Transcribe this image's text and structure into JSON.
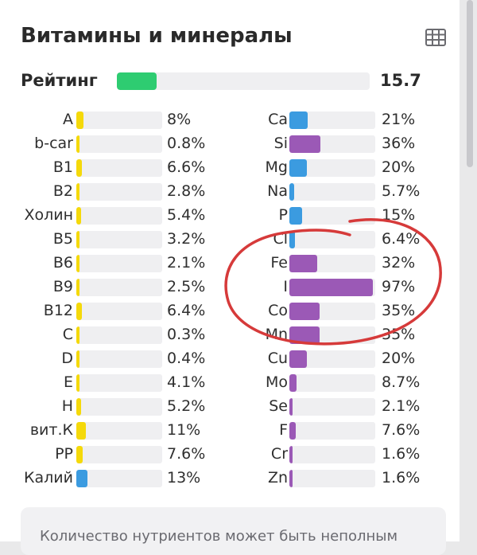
{
  "header": {
    "title": "Витамины и минералы",
    "table_icon": "table-grid-icon"
  },
  "rating": {
    "label": "Рейтинг",
    "value": "15.7",
    "fill_fraction": 0.157,
    "color": "#2ecc71"
  },
  "colors": {
    "vitamin": "#f5d90a",
    "mineral_blue": "#3b9be0",
    "mineral_purple": "#9b59b6",
    "annotation": "#d63a3a"
  },
  "vitamins": [
    {
      "name": "A",
      "value": "8%",
      "fraction": 0.08,
      "color": "#f5d90a"
    },
    {
      "name": "b-car",
      "value": "0.8%",
      "fraction": 0.008,
      "color": "#f5d90a"
    },
    {
      "name": "B1",
      "value": "6.6%",
      "fraction": 0.066,
      "color": "#f5d90a"
    },
    {
      "name": "B2",
      "value": "2.8%",
      "fraction": 0.028,
      "color": "#f5d90a"
    },
    {
      "name": "Холин",
      "value": "5.4%",
      "fraction": 0.054,
      "color": "#f5d90a"
    },
    {
      "name": "B5",
      "value": "3.2%",
      "fraction": 0.032,
      "color": "#f5d90a"
    },
    {
      "name": "B6",
      "value": "2.1%",
      "fraction": 0.021,
      "color": "#f5d90a"
    },
    {
      "name": "B9",
      "value": "2.5%",
      "fraction": 0.025,
      "color": "#f5d90a"
    },
    {
      "name": "B12",
      "value": "6.4%",
      "fraction": 0.064,
      "color": "#f5d90a"
    },
    {
      "name": "C",
      "value": "0.3%",
      "fraction": 0.003,
      "color": "#f5d90a"
    },
    {
      "name": "D",
      "value": "0.4%",
      "fraction": 0.004,
      "color": "#f5d90a"
    },
    {
      "name": "E",
      "value": "4.1%",
      "fraction": 0.041,
      "color": "#f5d90a"
    },
    {
      "name": "H",
      "value": "5.2%",
      "fraction": 0.052,
      "color": "#f5d90a"
    },
    {
      "name": "вит.К",
      "value": "11%",
      "fraction": 0.11,
      "color": "#f5d90a"
    },
    {
      "name": "PP",
      "value": "7.6%",
      "fraction": 0.076,
      "color": "#f5d90a"
    },
    {
      "name": "Калий",
      "value": "13%",
      "fraction": 0.13,
      "color": "#3b9be0"
    }
  ],
  "minerals": [
    {
      "name": "Ca",
      "value": "21%",
      "fraction": 0.21,
      "color": "#3b9be0"
    },
    {
      "name": "Si",
      "value": "36%",
      "fraction": 0.36,
      "color": "#9b59b6"
    },
    {
      "name": "Mg",
      "value": "20%",
      "fraction": 0.2,
      "color": "#3b9be0"
    },
    {
      "name": "Na",
      "value": "5.7%",
      "fraction": 0.057,
      "color": "#3b9be0"
    },
    {
      "name": "P",
      "value": "15%",
      "fraction": 0.15,
      "color": "#3b9be0"
    },
    {
      "name": "Cl",
      "value": "6.4%",
      "fraction": 0.064,
      "color": "#3b9be0"
    },
    {
      "name": "Fe",
      "value": "32%",
      "fraction": 0.32,
      "color": "#9b59b6"
    },
    {
      "name": "I",
      "value": "97%",
      "fraction": 0.97,
      "color": "#9b59b6"
    },
    {
      "name": "Co",
      "value": "35%",
      "fraction": 0.35,
      "color": "#9b59b6"
    },
    {
      "name": "Mn",
      "value": "35%",
      "fraction": 0.35,
      "color": "#9b59b6"
    },
    {
      "name": "Cu",
      "value": "20%",
      "fraction": 0.2,
      "color": "#9b59b6"
    },
    {
      "name": "Mo",
      "value": "8.7%",
      "fraction": 0.087,
      "color": "#9b59b6"
    },
    {
      "name": "Se",
      "value": "2.1%",
      "fraction": 0.021,
      "color": "#9b59b6"
    },
    {
      "name": "F",
      "value": "7.6%",
      "fraction": 0.076,
      "color": "#9b59b6"
    },
    {
      "name": "Cr",
      "value": "1.6%",
      "fraction": 0.016,
      "color": "#9b59b6"
    },
    {
      "name": "Zn",
      "value": "1.6%",
      "fraction": 0.016,
      "color": "#9b59b6"
    }
  ],
  "note": {
    "text": "Количество нутриентов может быть неполным"
  }
}
